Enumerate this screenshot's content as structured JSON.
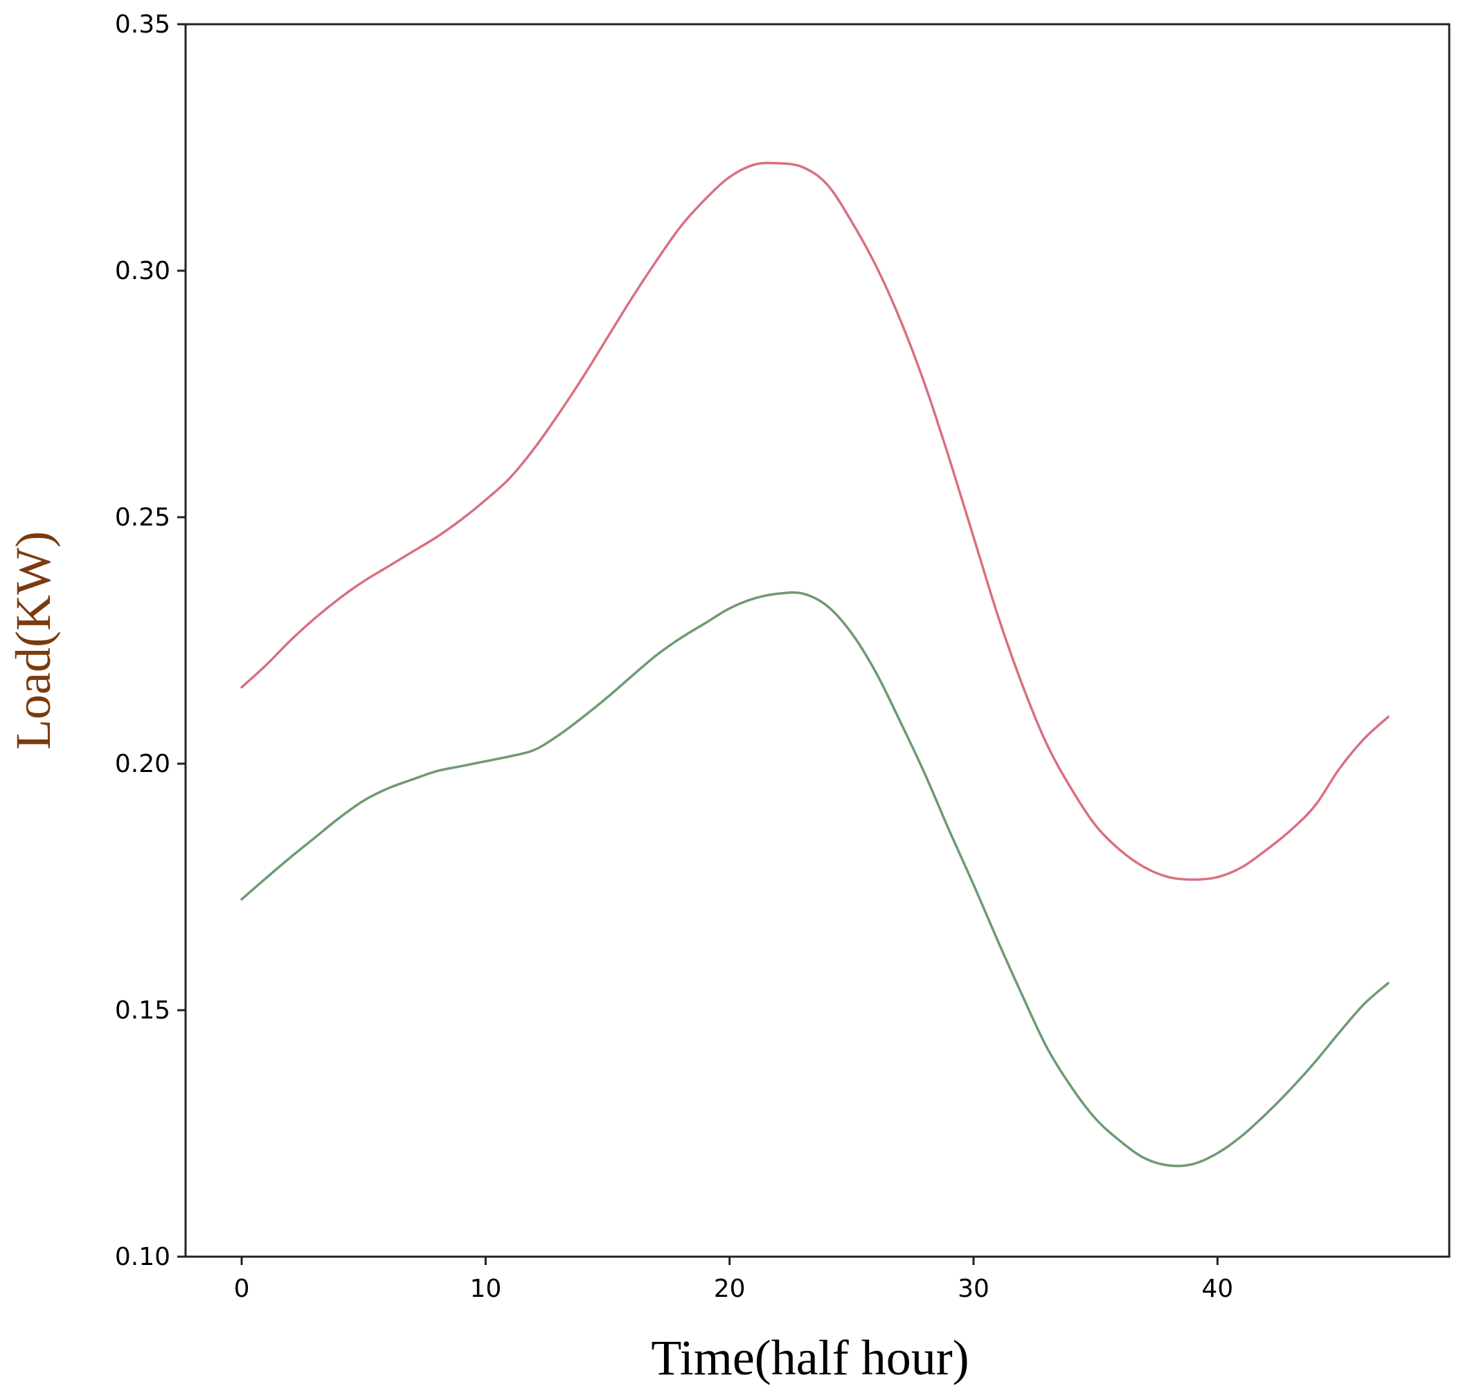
{
  "chart_data": {
    "type": "line",
    "xlabel": "Time(half hour)",
    "ylabel": "Load(KW)",
    "xlim": [
      -2.3,
      49.5
    ],
    "ylim": [
      0.1,
      0.35
    ],
    "x_ticks": [
      {
        "value": 0,
        "label": "0"
      },
      {
        "value": 10,
        "label": "10"
      },
      {
        "value": 20,
        "label": "20"
      },
      {
        "value": 30,
        "label": "30"
      },
      {
        "value": 40,
        "label": "40"
      }
    ],
    "y_ticks": [
      {
        "value": 0.1,
        "label": "0.10"
      },
      {
        "value": 0.15,
        "label": "0.15"
      },
      {
        "value": 0.2,
        "label": "0.20"
      },
      {
        "value": 0.25,
        "label": "0.25"
      },
      {
        "value": 0.3,
        "label": "0.30"
      },
      {
        "value": 0.35,
        "label": "0.35"
      }
    ],
    "grid": false,
    "legend": "none",
    "series": [
      {
        "color": "#d9707f",
        "x": [
          0,
          1,
          2,
          3,
          4,
          5,
          6,
          7,
          8,
          9,
          10,
          11,
          12,
          13,
          14,
          15,
          16,
          17,
          18,
          19,
          20,
          21,
          22,
          23,
          24,
          25,
          26,
          27,
          28,
          29,
          30,
          31,
          32,
          33,
          34,
          35,
          36,
          37,
          38,
          39,
          40,
          41,
          42,
          43,
          44,
          45,
          46,
          47
        ],
        "y": [
          0.2155,
          0.22,
          0.225,
          0.2295,
          0.2335,
          0.237,
          0.24,
          0.243,
          0.246,
          0.2495,
          0.2535,
          0.258,
          0.264,
          0.271,
          0.2785,
          0.2865,
          0.2945,
          0.302,
          0.309,
          0.3145,
          0.319,
          0.3215,
          0.3218,
          0.321,
          0.3175,
          0.31,
          0.301,
          0.29,
          0.277,
          0.262,
          0.246,
          0.23,
          0.216,
          0.204,
          0.195,
          0.1875,
          0.1825,
          0.179,
          0.177,
          0.1765,
          0.177,
          0.179,
          0.1825,
          0.1865,
          0.1915,
          0.199,
          0.205,
          0.2095
        ]
      },
      {
        "color": "#6e9a72",
        "x": [
          0,
          1,
          2,
          3,
          4,
          5,
          6,
          7,
          8,
          9,
          10,
          11,
          12,
          13,
          14,
          15,
          16,
          17,
          18,
          19,
          20,
          21,
          22,
          23,
          24,
          25,
          26,
          27,
          28,
          29,
          30,
          31,
          32,
          33,
          34,
          35,
          36,
          37,
          38,
          39,
          40,
          41,
          42,
          43,
          44,
          45,
          46,
          47
        ],
        "y": [
          0.1725,
          0.1768,
          0.181,
          0.185,
          0.189,
          0.1925,
          0.195,
          0.1968,
          0.1985,
          0.1995,
          0.2005,
          0.2015,
          0.2028,
          0.2058,
          0.2095,
          0.2135,
          0.2178,
          0.222,
          0.2255,
          0.2285,
          0.2315,
          0.2335,
          0.2345,
          0.2345,
          0.232,
          0.2265,
          0.2185,
          0.2085,
          0.198,
          0.1865,
          0.1755,
          0.164,
          0.153,
          0.1425,
          0.1345,
          0.128,
          0.1235,
          0.12,
          0.1185,
          0.1188,
          0.121,
          0.1245,
          0.129,
          0.134,
          0.1395,
          0.1455,
          0.1512,
          0.1555
        ]
      }
    ]
  }
}
